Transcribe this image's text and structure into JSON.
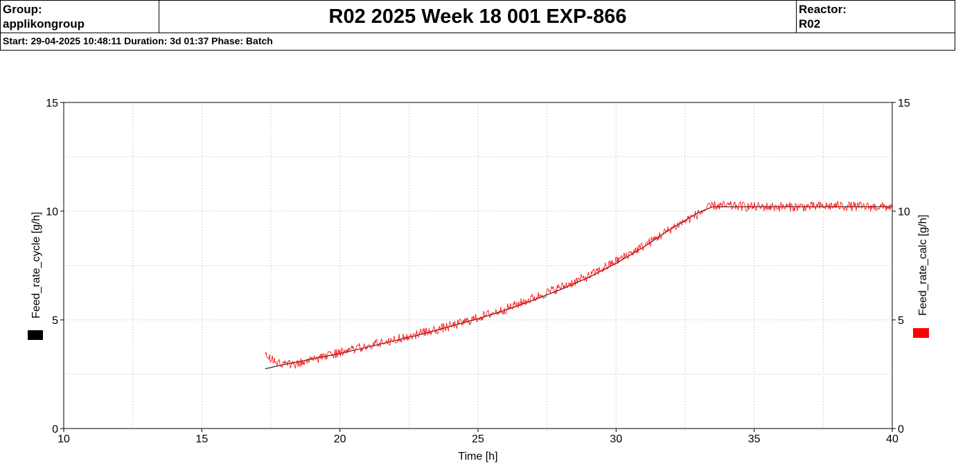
{
  "header": {
    "group_label": "Group:",
    "group_value": "applikongroup",
    "title": "R02 2025 Week 18 001 EXP-866",
    "reactor_label": "Reactor:",
    "reactor_value": "R02",
    "info": "Start: 29-04-2025 10:48:11 Duration: 3d 01:37 Phase: Batch"
  },
  "colors": {
    "series_black": "#000000",
    "series_red": "#ff0000",
    "grid": "#b0b0b0"
  },
  "chart_data": {
    "type": "line",
    "xlabel": "Time [h]",
    "ylabel_left": "Feed_rate_cycle  [g/h]",
    "ylabel_right": "Feed_rate_calc  [g/h]",
    "xlim": [
      10,
      40
    ],
    "ylim": [
      0,
      15
    ],
    "x_ticks": [
      "10",
      "15",
      "20",
      "25",
      "30",
      "35",
      "40"
    ],
    "y_ticks": [
      "0",
      "5",
      "10",
      "15"
    ],
    "grid": true,
    "legend": "axis-side color markers",
    "series": [
      {
        "color": "#000000",
        "x": [
          17.3,
          18,
          19,
          20,
          21,
          22,
          23,
          24,
          25,
          26,
          27,
          28,
          29,
          30,
          31,
          32,
          33,
          33.5,
          34,
          35,
          36,
          37,
          38,
          39,
          40
        ],
        "y": [
          2.75,
          2.95,
          3.2,
          3.45,
          3.75,
          4.05,
          4.35,
          4.7,
          5.05,
          5.45,
          5.9,
          6.4,
          6.95,
          7.6,
          8.35,
          9.2,
          9.95,
          10.2,
          10.2,
          10.2,
          10.2,
          10.2,
          10.2,
          10.2,
          10.2
        ]
      },
      {
        "color": "#ff0000",
        "x": [
          17.3,
          17.5,
          18,
          18.5,
          19,
          20,
          21,
          22,
          23,
          24,
          25,
          26,
          27,
          28,
          29,
          30,
          31,
          32,
          33,
          33.5,
          34,
          35,
          36,
          37,
          38,
          39,
          40
        ],
        "y": [
          3.4,
          3.2,
          2.9,
          3.0,
          3.15,
          3.5,
          3.8,
          4.1,
          4.4,
          4.7,
          5.1,
          5.5,
          6.0,
          6.5,
          7.0,
          7.7,
          8.4,
          9.2,
          9.9,
          10.25,
          10.25,
          10.2,
          10.2,
          10.2,
          10.25,
          10.2,
          10.2
        ],
        "noise": 0.22
      }
    ]
  }
}
